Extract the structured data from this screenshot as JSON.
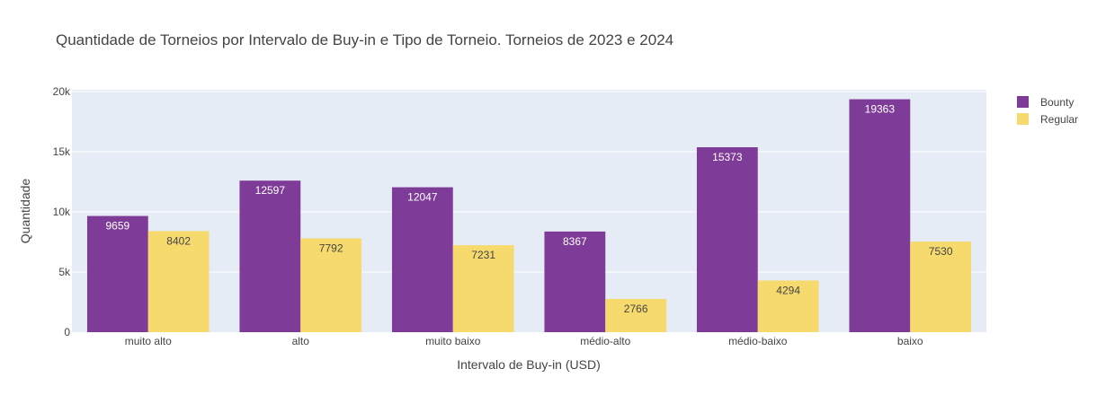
{
  "chart_data": {
    "type": "bar",
    "title": "Quantidade de Torneios por Intervalo de Buy-in e Tipo de Torneio. Torneios de 2023 e 2024",
    "xlabel": "Intervalo de Buy-in (USD)",
    "ylabel": "Quantidade",
    "categories": [
      "muito alto",
      "alto",
      "muito baixo",
      "médio-alto",
      "médio-baixo",
      "baixo"
    ],
    "series": [
      {
        "name": "Bounty",
        "color": "#7e3b97",
        "label_color": "#ffffff",
        "values": [
          9659,
          12597,
          12047,
          8367,
          15373,
          19363
        ]
      },
      {
        "name": "Regular",
        "color": "#f6da6e",
        "label_color": "#444444",
        "values": [
          8402,
          7792,
          7231,
          2766,
          4294,
          7530
        ]
      }
    ],
    "ylim": [
      0,
      20150
    ],
    "yticks": [
      0,
      5000,
      10000,
      15000,
      20000
    ],
    "ytick_labels": [
      "0",
      "5k",
      "10k",
      "15k",
      "20k"
    ],
    "grid": true,
    "legend": "top-right",
    "plot_background": "#e5ecf6"
  }
}
